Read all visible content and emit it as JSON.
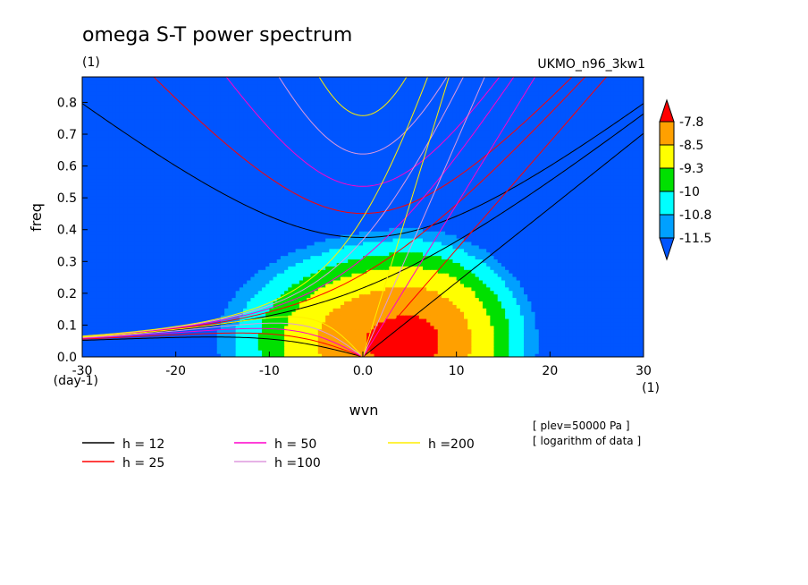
{
  "header": {
    "title": "omega S-T power spectrum",
    "units_left": "(1)",
    "model": "UKMO_n96_3kw1"
  },
  "notes": [
    "[ plev=50000 Pa ]",
    "[ logarithm of data ]"
  ],
  "chart_data": {
    "type": "heatmap",
    "title": "omega S-T power spectrum",
    "xlabel": "wvn",
    "ylabel": "freq",
    "x_units": "(1)",
    "y_units": "(day-1)",
    "xlim": [
      -30,
      30
    ],
    "ylim": [
      0,
      0.88
    ],
    "x_ticks": [
      -30,
      -20,
      -10,
      0,
      10,
      20,
      30
    ],
    "x_tick_labels": [
      "-30",
      "-20",
      "-10",
      "0.0",
      "10",
      "20",
      "30"
    ],
    "y_ticks": [
      0,
      0.1,
      0.2,
      0.3,
      0.4,
      0.5,
      0.6,
      0.7,
      0.8
    ],
    "y_tick_labels": [
      "0.0",
      "0.1",
      "0.2",
      "0.3",
      "0.4",
      "0.5",
      "0.6",
      "0.7",
      "0.8"
    ],
    "contour_levels": [
      -11.5,
      -10.8,
      -10,
      -9.3,
      -8.5,
      -7.8
    ],
    "colorbar_labels": [
      "-7.8",
      "-8.5",
      "-9.3",
      "-10",
      "-10.8",
      "-11.5"
    ],
    "colors": [
      "#0055ff",
      "#00a0ff",
      "#00ffff",
      "#00e000",
      "#ffff00",
      "#ffa000",
      "#ff0000"
    ],
    "peak": {
      "wvn": 5,
      "freq": 0.05,
      "value": -7.6
    },
    "dispersion_curves": [
      {
        "name": "h = 12",
        "color": "#000000"
      },
      {
        "name": "h = 25",
        "color": "#ff0000"
      },
      {
        "name": "h = 50",
        "color": "#ff00cc"
      },
      {
        "name": "h =100",
        "color": "#dd99dd"
      },
      {
        "name": "h =200",
        "color": "#ffee00"
      }
    ]
  }
}
